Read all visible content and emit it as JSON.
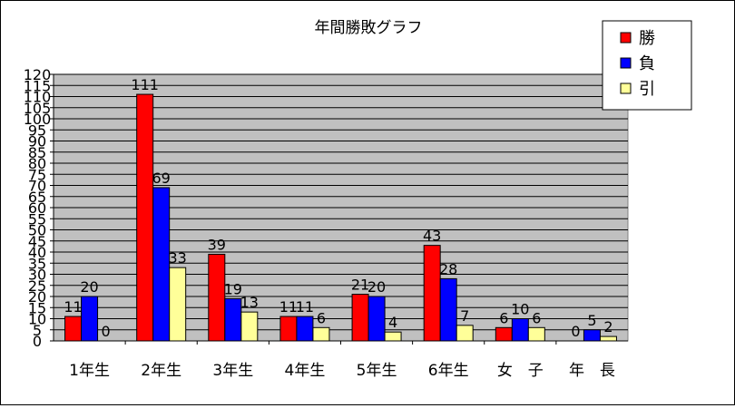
{
  "chart_data": {
    "type": "bar",
    "title": "年間勝敗グラフ",
    "categories": [
      "1年生",
      "2年生",
      "3年生",
      "4年生",
      "5年生",
      "6年生",
      "女　子",
      "年　長"
    ],
    "series": [
      {
        "name": "勝",
        "values": [
          11,
          111,
          39,
          11,
          21,
          43,
          6,
          0
        ],
        "color": "#ff0000"
      },
      {
        "name": "負",
        "values": [
          20,
          69,
          19,
          11,
          20,
          28,
          10,
          5
        ],
        "color": "#0000ff"
      },
      {
        "name": "引",
        "values": [
          0,
          33,
          13,
          6,
          4,
          7,
          6,
          2
        ],
        "color": "#ffff99"
      }
    ],
    "ylim": [
      0,
      120
    ],
    "ytick_step": 5,
    "yticks": [
      "0",
      "5",
      "10",
      "15",
      "20",
      "25",
      "30",
      "35",
      "40",
      "45",
      "50",
      "55",
      "60",
      "65",
      "70",
      "75",
      "80",
      "85",
      "90",
      "95",
      "100",
      "105",
      "110",
      "115",
      "120"
    ],
    "xlabel": "",
    "ylabel": "",
    "grid": true,
    "plot_background": "#c0c0c0",
    "legend_position": "top-right"
  }
}
